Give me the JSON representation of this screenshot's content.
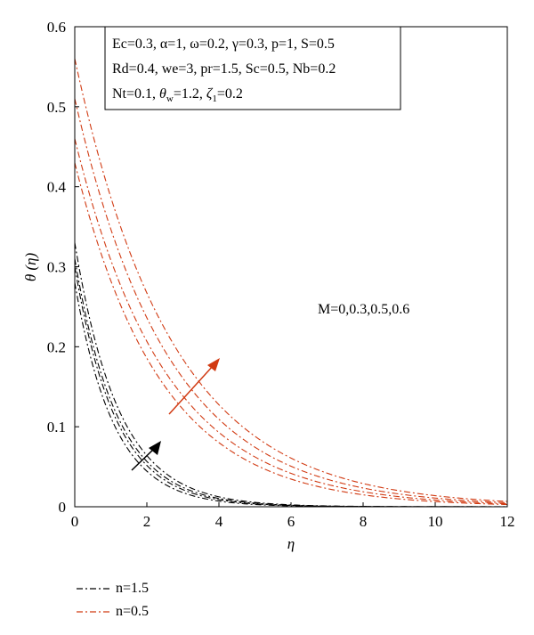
{
  "chart_data": {
    "type": "line",
    "xlabel": "η",
    "ylabel": "θ (η)",
    "xlim": [
      0,
      12
    ],
    "ylim": [
      0,
      0.6
    ],
    "xticks": [
      "0",
      "2",
      "4",
      "6",
      "8",
      "10",
      "12"
    ],
    "yticks": [
      "0",
      "0.1",
      "0.2",
      "0.3",
      "0.4",
      "0.5",
      "0.6"
    ],
    "grid": false,
    "params_box": {
      "line1": "Ec=0.3, α=1, ω=0.2, γ=0.3, p=1, S=0.5",
      "line2": "Rd=0.4, we=3, pr=1.5, Sc=0.5, Nb=0.2",
      "line3_nt": "Nt=0.1, ",
      "line3_theta": "θ",
      "line3_w": "w",
      "line3_mid": "=1.2, ",
      "line3_zeta": "ζ",
      "line3_sub1": "1",
      "line3_end": "=0.2"
    },
    "annotation": "M=0,0.3,0.5,0.6",
    "colors": {
      "n15": "#000000",
      "n05": "#d13a12"
    },
    "series": [
      {
        "name": "n=1.5",
        "group": "n15",
        "M": 0,
        "y0": 0.28,
        "decay": 0.92
      },
      {
        "name": "n=1.5",
        "group": "n15",
        "M": 0.3,
        "y0": 0.3,
        "decay": 0.88
      },
      {
        "name": "n=1.5",
        "group": "n15",
        "M": 0.5,
        "y0": 0.31,
        "decay": 0.85
      },
      {
        "name": "n=1.5",
        "group": "n15",
        "M": 0.6,
        "y0": 0.33,
        "decay": 0.82
      },
      {
        "name": "n=0.5",
        "group": "n05",
        "M": 0,
        "y0": 0.43,
        "decay": 0.42
      },
      {
        "name": "n=0.5",
        "group": "n05",
        "M": 0.3,
        "y0": 0.46,
        "decay": 0.4
      },
      {
        "name": "n=0.5",
        "group": "n05",
        "M": 0.5,
        "y0": 0.51,
        "decay": 0.385
      },
      {
        "name": "n=0.5",
        "group": "n05",
        "M": 0.6,
        "y0": 0.56,
        "decay": 0.37
      }
    ],
    "legend": [
      {
        "label": "n=1.5",
        "group": "n15"
      },
      {
        "label": "n=0.5",
        "group": "n05"
      }
    ]
  }
}
